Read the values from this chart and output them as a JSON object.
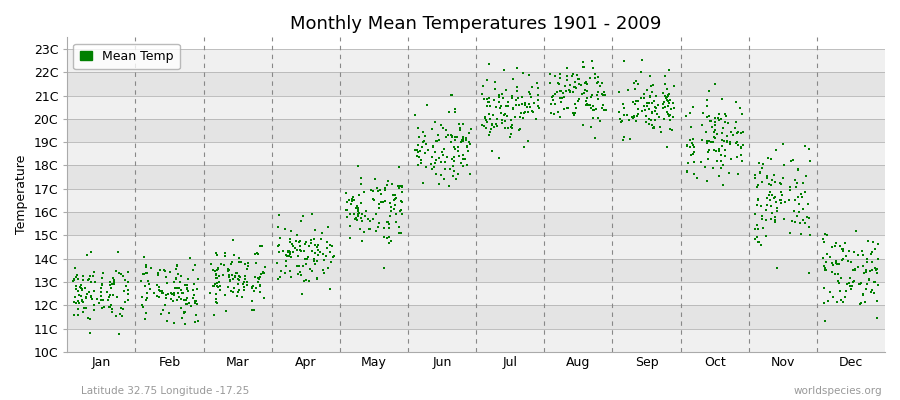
{
  "title": "Monthly Mean Temperatures 1901 - 2009",
  "ylabel": "Temperature",
  "xlabel_labels": [
    "Jan",
    "Feb",
    "Mar",
    "Apr",
    "May",
    "Jun",
    "Jul",
    "Aug",
    "Sep",
    "Oct",
    "Nov",
    "Dec"
  ],
  "ytick_labels": [
    "10C",
    "11C",
    "12C",
    "13C",
    "14C",
    "15C",
    "16C",
    "17C",
    "18C",
    "19C",
    "20C",
    "21C",
    "22C",
    "23C"
  ],
  "ytick_values": [
    10,
    11,
    12,
    13,
    14,
    15,
    16,
    17,
    18,
    19,
    20,
    21,
    22,
    23
  ],
  "ylim": [
    10,
    23.5
  ],
  "dot_color": "#008000",
  "dot_size": 3,
  "background_color": "#ffffff",
  "plot_bg_color_light": "#f0f0f0",
  "plot_bg_color_dark": "#e0e0e0",
  "grid_color": "#aaaaaa",
  "vline_color": "#888888",
  "title_fontsize": 13,
  "axis_label_fontsize": 9,
  "tick_fontsize": 9,
  "legend_label": "Mean Temp",
  "subtitle_left": "Latitude 32.75 Longitude -17.25",
  "subtitle_right": "worldspecies.org",
  "monthly_means": [
    12.5,
    12.5,
    13.2,
    14.2,
    16.2,
    18.8,
    20.5,
    21.0,
    20.5,
    19.2,
    16.5,
    13.5
  ],
  "monthly_stds": [
    0.65,
    0.65,
    0.65,
    0.65,
    0.75,
    0.75,
    0.75,
    0.65,
    0.75,
    0.85,
    1.1,
    0.85
  ],
  "n_years": 109,
  "seed": 42
}
